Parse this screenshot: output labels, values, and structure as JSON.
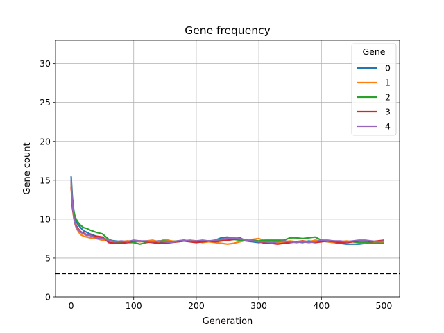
{
  "chart_data": {
    "type": "line",
    "title": "Gene frequency",
    "xlabel": "Generation",
    "ylabel": "Gene count",
    "xlim": [
      -25,
      525
    ],
    "ylim": [
      0,
      33
    ],
    "xticks": [
      0,
      100,
      200,
      300,
      400,
      500
    ],
    "yticks": [
      0,
      5,
      10,
      15,
      20,
      25,
      30
    ],
    "grid": true,
    "legend": {
      "title": "Gene",
      "placement": "top-right"
    },
    "reference_line": {
      "y": 3,
      "style": "dashed",
      "color": "#000000"
    },
    "x": [
      0,
      2,
      4,
      6,
      8,
      10,
      15,
      20,
      25,
      30,
      40,
      50,
      60,
      70,
      80,
      90,
      100,
      110,
      120,
      130,
      140,
      150,
      160,
      170,
      180,
      190,
      200,
      210,
      220,
      230,
      240,
      250,
      260,
      270,
      280,
      290,
      300,
      310,
      320,
      330,
      340,
      350,
      360,
      370,
      380,
      390,
      400,
      410,
      420,
      430,
      440,
      450,
      460,
      470,
      480,
      490,
      500
    ],
    "series": [
      {
        "name": "0",
        "color": "#1f77b4",
        "values": [
          15.5,
          12.8,
          11.2,
          10.3,
          9.8,
          9.4,
          8.9,
          8.5,
          8.3,
          8.1,
          7.8,
          7.6,
          7.3,
          7.2,
          7.1,
          7.2,
          7.1,
          7.2,
          7.1,
          7.2,
          7.0,
          7.1,
          7.2,
          7.1,
          7.2,
          7.3,
          7.2,
          7.2,
          7.1,
          7.3,
          7.6,
          7.7,
          7.5,
          7.6,
          7.2,
          7.1,
          7.0,
          7.1,
          7.0,
          6.9,
          6.9,
          7.0,
          7.1,
          7.0,
          7.2,
          7.1,
          7.2,
          7.1,
          7.0,
          6.9,
          6.8,
          6.8,
          6.8,
          6.9,
          7.0,
          7.0,
          7.0
        ]
      },
      {
        "name": "1",
        "color": "#ff7f0e",
        "values": [
          14.5,
          11.8,
          10.2,
          9.4,
          8.9,
          8.6,
          8.0,
          7.8,
          7.7,
          7.6,
          7.5,
          7.3,
          7.2,
          7.0,
          7.1,
          7.2,
          7.2,
          7.1,
          7.2,
          7.3,
          7.1,
          7.4,
          7.2,
          7.1,
          7.2,
          7.3,
          7.2,
          7.0,
          7.1,
          7.0,
          6.9,
          6.8,
          6.9,
          7.1,
          7.3,
          7.4,
          7.5,
          7.2,
          7.1,
          7.0,
          7.1,
          7.2,
          7.1,
          7.2,
          7.1,
          7.3,
          7.2,
          7.1,
          7.0,
          7.1,
          7.2,
          7.1,
          7.0,
          6.9,
          7.0,
          7.0,
          7.0
        ]
      },
      {
        "name": "2",
        "color": "#2ca02c",
        "values": [
          14.8,
          12.6,
          11.0,
          10.4,
          10.0,
          9.7,
          9.2,
          8.9,
          8.8,
          8.6,
          8.3,
          8.1,
          7.4,
          7.1,
          7.0,
          7.0,
          7.0,
          6.8,
          7.0,
          7.1,
          7.2,
          7.2,
          7.1,
          7.2,
          7.3,
          7.2,
          7.1,
          7.1,
          7.2,
          7.2,
          7.3,
          7.3,
          7.4,
          7.3,
          7.2,
          7.3,
          7.2,
          7.3,
          7.3,
          7.3,
          7.3,
          7.6,
          7.6,
          7.5,
          7.6,
          7.7,
          7.3,
          7.2,
          7.2,
          7.1,
          7.0,
          7.1,
          7.0,
          7.0,
          6.9,
          6.9,
          6.9
        ]
      },
      {
        "name": "3",
        "color": "#d62728",
        "values": [
          14.2,
          11.5,
          10.4,
          9.6,
          9.2,
          8.9,
          8.4,
          8.2,
          8.0,
          7.9,
          7.8,
          7.7,
          7.0,
          6.9,
          6.9,
          7.0,
          7.2,
          7.2,
          7.1,
          7.0,
          6.9,
          6.9,
          7.0,
          7.1,
          7.2,
          7.1,
          7.0,
          7.1,
          7.2,
          7.1,
          7.2,
          7.3,
          7.4,
          7.5,
          7.3,
          7.2,
          7.1,
          6.9,
          6.9,
          6.8,
          6.9,
          7.0,
          7.1,
          7.2,
          7.1,
          7.0,
          7.1,
          7.2,
          7.1,
          7.0,
          7.0,
          7.1,
          7.2,
          7.2,
          7.1,
          7.2,
          7.3
        ]
      },
      {
        "name": "4",
        "color": "#9467bd",
        "values": [
          15.0,
          12.0,
          10.4,
          9.5,
          9.0,
          8.8,
          8.3,
          8.1,
          7.9,
          7.9,
          7.6,
          7.5,
          7.3,
          7.1,
          7.2,
          7.1,
          7.3,
          7.2,
          7.2,
          7.1,
          7.2,
          7.1,
          7.0,
          7.2,
          7.3,
          7.2,
          7.2,
          7.3,
          7.2,
          7.3,
          7.4,
          7.5,
          7.6,
          7.5,
          7.3,
          7.2,
          7.1,
          7.1,
          7.0,
          7.1,
          7.2,
          7.1,
          7.0,
          7.1,
          7.0,
          7.1,
          7.3,
          7.3,
          7.2,
          7.2,
          7.1,
          7.2,
          7.3,
          7.3,
          7.2,
          7.1,
          7.2
        ]
      }
    ]
  }
}
